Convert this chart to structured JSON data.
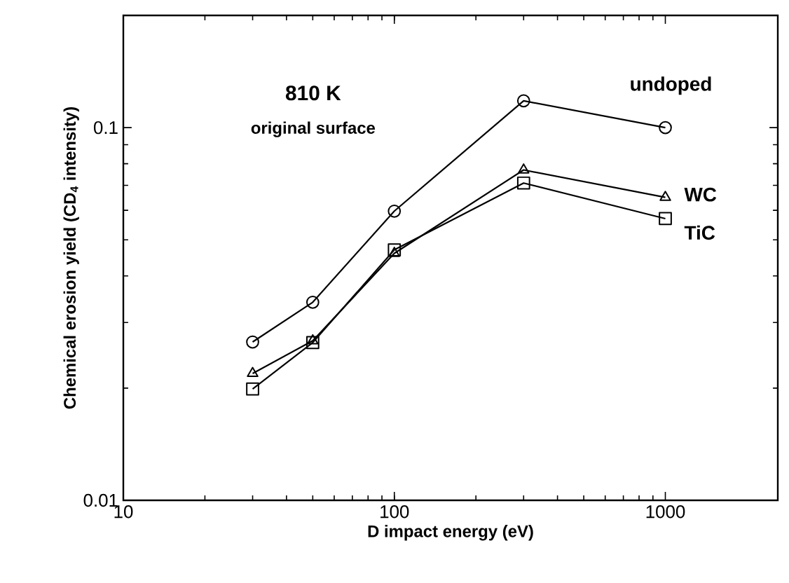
{
  "chart_data": {
    "type": "line",
    "xlabel": "D impact energy (eV)",
    "ylabel": "Chemical erosion yield (CD$_{4}$ intensity)",
    "annotations": [
      "810 K",
      "original surface"
    ],
    "log": "xy",
    "xlim": [
      10,
      2600
    ],
    "ylim": [
      0.01,
      0.2
    ],
    "xticks": [
      10,
      100,
      1000
    ],
    "yticks": [
      0.01,
      0.1
    ],
    "x": [
      30,
      50,
      100,
      300,
      1000
    ],
    "grid": false,
    "legend": false,
    "line_style": "solid",
    "series": [
      {
        "name": "undoped",
        "color": "#000000",
        "marker": "circle",
        "values": [
          0.0266,
          0.034,
          0.0597,
          0.118,
          0.1
        ]
      },
      {
        "name": "WC",
        "color": "#000000",
        "marker": "triangle",
        "values": [
          0.0219,
          0.0268,
          0.046,
          0.077,
          0.065
        ]
      },
      {
        "name": "TiC",
        "color": "#000000",
        "marker": "square",
        "values": [
          0.0199,
          0.0265,
          0.047,
          0.071,
          0.057
        ]
      }
    ]
  }
}
